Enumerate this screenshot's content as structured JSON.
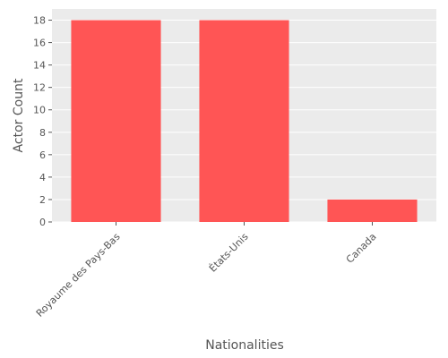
{
  "chart_data": {
    "type": "bar",
    "title": "",
    "xlabel": "Nationalities",
    "ylabel": "Actor Count",
    "categories": [
      "Royaume des Pays-Bas",
      "États-Unis",
      "Canada"
    ],
    "values": [
      18,
      18,
      2
    ],
    "ylim": [
      0,
      19
    ],
    "yticks": [
      0,
      2,
      4,
      6,
      8,
      10,
      12,
      14,
      16,
      18
    ],
    "grid": true,
    "legend": "none",
    "bar_color": "#ff5555",
    "background_color": "#ebebeb",
    "grid_color": "#ffffff"
  }
}
